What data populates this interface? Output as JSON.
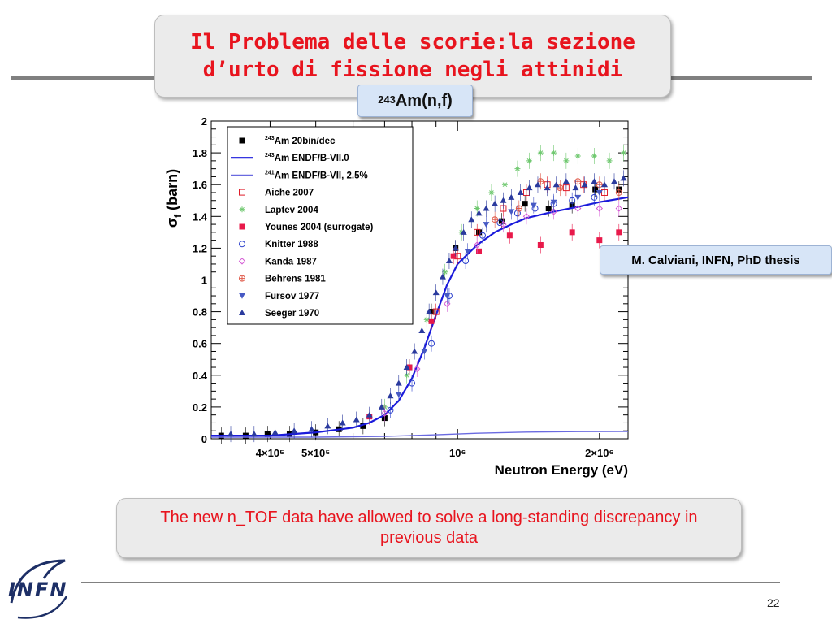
{
  "slide": {
    "title": "Il Problema delle scorie:la sezione d’urto di fissione negli attinidi",
    "subtitle": {
      "prefix": "243",
      "text": "Am(n,f)"
    },
    "credit": "M. Calviani, INFN, PhD thesis",
    "note": "The new n_TOF data have allowed to solve a long-standing discrepancy in previous data",
    "page_number": "22",
    "logo": "INFN"
  },
  "colors": {
    "title": "#e8141e",
    "note_text": "#e8141e",
    "box_fill": "#ebebeb",
    "label_fill": "#d7e5f7",
    "rule": "#808080"
  },
  "chart_data": {
    "type": "scatter",
    "xlabel": "Neutron Energy (eV)",
    "ylabel": {
      "symbol": "σ",
      "subscript": "f",
      "unit": " (barn)"
    },
    "xscale": "log",
    "xlim": [
      300000,
      2300000
    ],
    "ylim": [
      0,
      2
    ],
    "y_ticks": [
      "0",
      "0.2",
      "0.4",
      "0.6",
      "0.8",
      "1",
      "1.2",
      "1.4",
      "1.6",
      "1.8",
      "2"
    ],
    "x_tick_labels": [
      {
        "value": 400000,
        "label": "4×10⁵"
      },
      {
        "value": 500000,
        "label": "5×10⁵"
      },
      {
        "value": 1000000,
        "label": "10⁶"
      },
      {
        "value": 2000000,
        "label": "2×10⁶"
      }
    ],
    "legend_position": "top-left",
    "series": [
      {
        "name": "243Am 20bin/dec",
        "sup": "243",
        "text": "Am 20bin/dec",
        "marker": "square-filled",
        "color": "#000000",
        "x": [
          315000,
          355000,
          395000,
          440000,
          500000,
          560000,
          630000,
          700000,
          790000,
          880000,
          990000,
          1110000,
          1240000,
          1390000,
          1560000,
          1750000,
          1960000,
          2200000
        ],
        "y": [
          0.02,
          0.02,
          0.03,
          0.03,
          0.04,
          0.06,
          0.08,
          0.13,
          0.45,
          0.8,
          1.2,
          1.3,
          1.37,
          1.48,
          1.45,
          1.47,
          1.57,
          1.57
        ]
      },
      {
        "name": "243Am ENDF/B-VII.0",
        "sup": "243",
        "text": "Am ENDF/B-VII.0",
        "marker": "line-thick",
        "color": "#1a1adb",
        "x": [
          300000,
          400000,
          500000,
          600000,
          650000,
          700000,
          750000,
          800000,
          850000,
          900000,
          950000,
          1000000,
          1100000,
          1200000,
          1300000,
          1400000,
          1600000,
          1800000,
          2000000,
          2300000
        ],
        "y": [
          0.02,
          0.02,
          0.04,
          0.07,
          0.1,
          0.15,
          0.24,
          0.38,
          0.57,
          0.78,
          0.97,
          1.1,
          1.22,
          1.3,
          1.35,
          1.39,
          1.43,
          1.46,
          1.49,
          1.52
        ]
      },
      {
        "name": "241Am ENDF/B-VII, 2.5%",
        "sup": "241",
        "text": "Am ENDF/B-VII, 2.5%",
        "marker": "line-thin",
        "color": "#6a6ae0",
        "x": [
          300000,
          500000,
          700000,
          900000,
          1100000,
          1400000,
          1800000,
          2300000
        ],
        "y": [
          0.01,
          0.01,
          0.015,
          0.025,
          0.035,
          0.042,
          0.045,
          0.046
        ]
      },
      {
        "name": "Aiche 2007",
        "text": "Aiche 2007",
        "marker": "square-open",
        "color": "#e01d2a",
        "x": [
          900000,
          1000000,
          1100000,
          1250000,
          1400000,
          1550000,
          1700000,
          1850000,
          2050000
        ],
        "y": [
          0.8,
          1.15,
          1.3,
          1.45,
          1.55,
          1.6,
          1.58,
          1.6,
          1.55
        ]
      },
      {
        "name": "Laptev 2004",
        "text": "Laptev 2004",
        "marker": "star",
        "color": "#6fc86f",
        "x": [
          700000,
          780000,
          860000,
          940000,
          1020000,
          1100000,
          1180000,
          1260000,
          1340000,
          1420000,
          1500000,
          1600000,
          1700000,
          1800000,
          1950000,
          2100000,
          2250000
        ],
        "y": [
          0.2,
          0.4,
          0.75,
          1.05,
          1.3,
          1.45,
          1.55,
          1.6,
          1.7,
          1.75,
          1.8,
          1.8,
          1.75,
          1.78,
          1.78,
          1.75,
          1.8
        ]
      },
      {
        "name": "Younes 2004 (surrogate)",
        "text": "Younes 2004 (surrogate)",
        "marker": "square-filled",
        "color": "#e8194a",
        "x": [
          650000,
          790000,
          880000,
          980000,
          1110000,
          1290000,
          1500000,
          1750000,
          2000000,
          2200000
        ],
        "y": [
          0.14,
          0.45,
          0.74,
          1.15,
          1.18,
          1.28,
          1.22,
          1.3,
          1.25,
          1.3
        ]
      },
      {
        "name": "Knitter 1988",
        "text": "Knitter 1988",
        "marker": "circle-open",
        "color": "#2a3fcc",
        "x": [
          720000,
          800000,
          880000,
          960000,
          1040000,
          1130000,
          1230000,
          1340000,
          1460000,
          1600000,
          1750000,
          1950000
        ],
        "y": [
          0.18,
          0.35,
          0.6,
          0.9,
          1.12,
          1.28,
          1.36,
          1.42,
          1.45,
          1.48,
          1.5,
          1.52
        ]
      },
      {
        "name": "Kanda 1987",
        "text": "Kanda 1987",
        "marker": "diamond-open",
        "color": "#d45ad4",
        "x": [
          700000,
          820000,
          950000,
          1100000,
          1250000,
          1400000,
          1600000,
          1800000,
          2000000,
          2200000
        ],
        "y": [
          0.16,
          0.44,
          0.85,
          1.22,
          1.35,
          1.4,
          1.43,
          1.45,
          1.45,
          1.45
        ]
      },
      {
        "name": "Behrens 1981",
        "text": "Behrens 1981",
        "marker": "circle-cross",
        "color": "#e05a4a",
        "x": [
          1200000,
          1350000,
          1500000,
          1650000,
          1800000,
          2000000,
          2200000
        ],
        "y": [
          1.38,
          1.45,
          1.62,
          1.58,
          1.62,
          1.6,
          1.55
        ]
      },
      {
        "name": "Fursov 1977",
        "text": "Fursov 1977",
        "marker": "triangle-down",
        "color": "#4659c4",
        "x": [
          750000,
          850000,
          950000,
          1050000,
          1150000,
          1300000,
          1450000,
          1600000,
          1800000,
          2000000
        ],
        "y": [
          0.28,
          0.55,
          0.9,
          1.18,
          1.35,
          1.43,
          1.47,
          1.49,
          1.52,
          1.55
        ]
      },
      {
        "name": "Seeger 1970",
        "text": "Seeger 1970",
        "marker": "triangle-up",
        "color": "#2a3a9e",
        "x": [
          330000,
          370000,
          410000,
          450000,
          490000,
          530000,
          570000,
          610000,
          650000,
          690000,
          720000,
          750000,
          780000,
          810000,
          840000,
          870000,
          900000,
          930000,
          960000,
          990000,
          1030000,
          1070000,
          1110000,
          1150000,
          1200000,
          1250000,
          1300000,
          1360000,
          1420000,
          1480000,
          1550000,
          1620000,
          1700000,
          1780000,
          1860000,
          1950000,
          2050000,
          2150000,
          2250000
        ],
        "y": [
          0.03,
          0.03,
          0.04,
          0.05,
          0.06,
          0.08,
          0.1,
          0.12,
          0.15,
          0.2,
          0.27,
          0.35,
          0.45,
          0.55,
          0.68,
          0.8,
          0.92,
          1.02,
          1.12,
          1.2,
          1.3,
          1.38,
          1.42,
          1.45,
          1.48,
          1.5,
          1.52,
          1.55,
          1.58,
          1.6,
          1.58,
          1.6,
          1.62,
          1.58,
          1.6,
          1.62,
          1.6,
          1.62,
          1.64
        ]
      }
    ]
  }
}
